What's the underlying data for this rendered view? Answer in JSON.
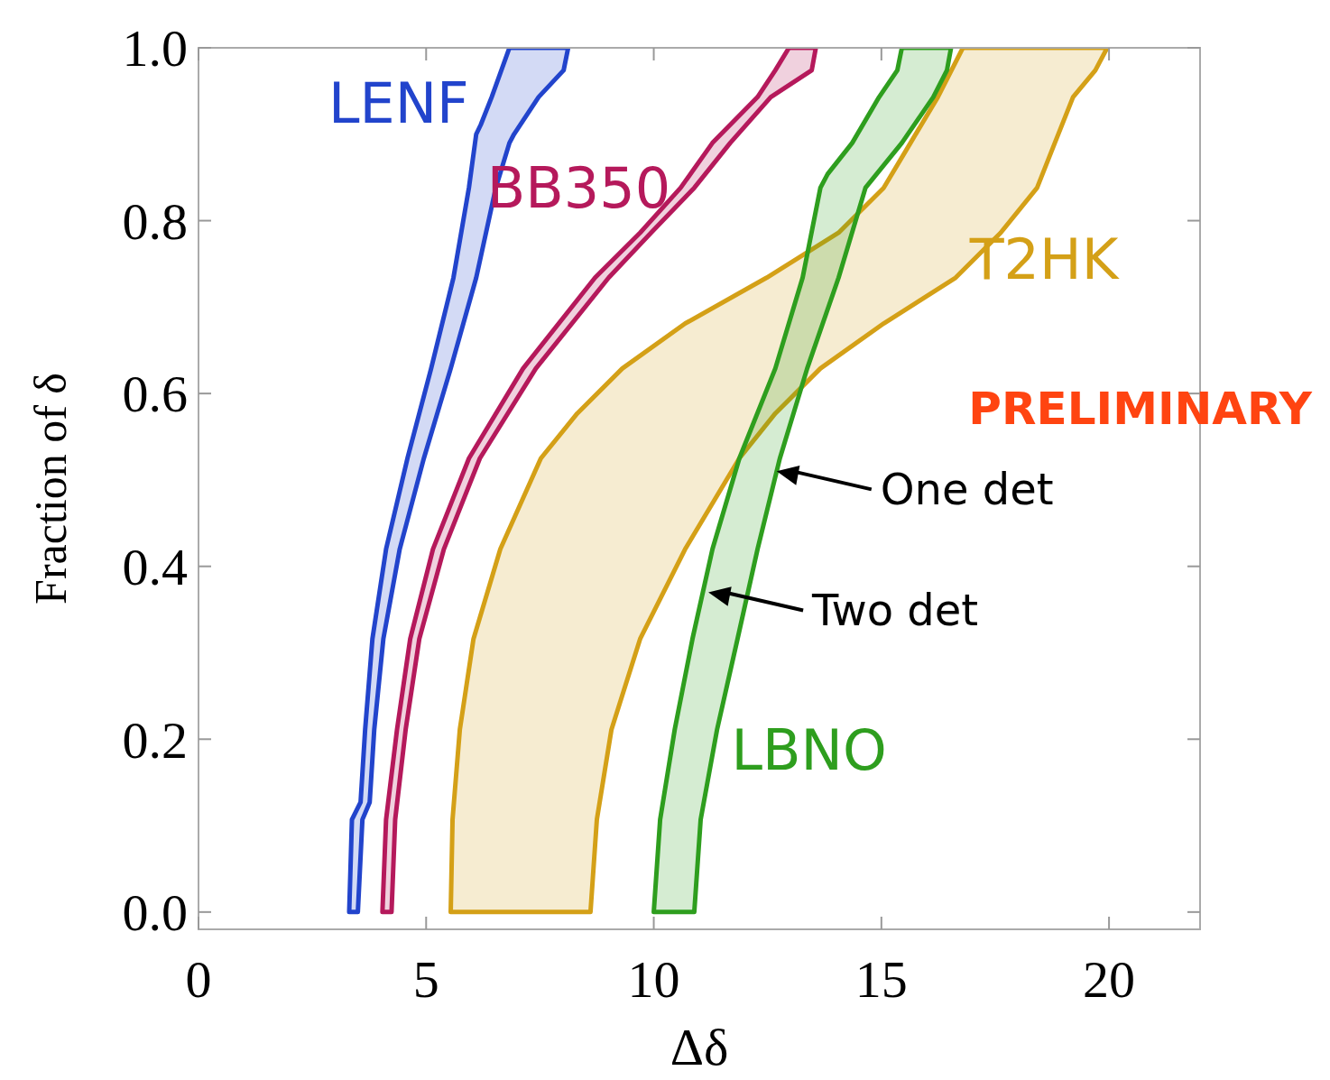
{
  "chart_data": {
    "type": "area",
    "xlabel": "Δδ",
    "ylabel": "Fraction of δ",
    "xlim": [
      0,
      22
    ],
    "ylim": [
      -0.02,
      1.0
    ],
    "xticks": [
      0,
      5,
      10,
      15,
      20
    ],
    "yticks": [
      {
        "value": 0,
        "label": "0.0"
      },
      {
        "value": 0.2,
        "label": "0.2"
      },
      {
        "value": 0.4,
        "label": "0.4"
      },
      {
        "value": 0.6,
        "label": "0.6"
      },
      {
        "value": 0.8,
        "label": "0.8"
      },
      {
        "value": 1.0,
        "label": "1.0"
      }
    ],
    "series": [
      {
        "name": "LENF",
        "color": "#2244cc",
        "x": [
          3.31,
          3.37,
          3.56,
          3.66,
          3.82,
          4.12,
          4.59,
          5.11,
          5.6,
          5.94,
          6.1,
          6.2,
          6.44,
          6.83,
          8.12,
          8.02,
          7.47,
          6.93,
          6.83,
          6.53,
          6.1,
          5.54,
          4.95,
          4.42,
          4.06,
          3.86,
          3.76,
          3.6,
          3.5
        ],
        "values": [
          0,
          0.107,
          0.127,
          0.211,
          0.316,
          0.42,
          0.525,
          0.629,
          0.734,
          0.838,
          0.9,
          0.911,
          0.943,
          1.0,
          1.0,
          0.974,
          0.943,
          0.9,
          0.89,
          0.838,
          0.734,
          0.629,
          0.525,
          0.42,
          0.316,
          0.211,
          0.127,
          0.107,
          0
        ]
      },
      {
        "name": "BB350",
        "color": "#b5195b",
        "x": [
          4.04,
          4.12,
          4.36,
          4.65,
          5.15,
          5.94,
          7.13,
          8.71,
          9.7,
          10.59,
          11.29,
          12.28,
          12.67,
          12.97,
          13.56,
          13.47,
          12.57,
          11.68,
          10.89,
          9.94,
          9.01,
          7.41,
          6.18,
          5.39,
          4.85,
          4.55,
          4.32,
          4.24
        ],
        "values": [
          0,
          0.107,
          0.211,
          0.316,
          0.42,
          0.525,
          0.629,
          0.734,
          0.786,
          0.838,
          0.89,
          0.943,
          0.974,
          1.0,
          1.0,
          0.974,
          0.943,
          0.89,
          0.838,
          0.786,
          0.734,
          0.629,
          0.525,
          0.42,
          0.316,
          0.211,
          0.107,
          0
        ]
      },
      {
        "name": "T2HK",
        "color": "#d4a017",
        "x": [
          5.54,
          5.58,
          5.74,
          6.04,
          6.63,
          7.52,
          8.32,
          9.31,
          10.69,
          12.48,
          14.06,
          15.05,
          15.64,
          16.24,
          16.79,
          19.96,
          19.7,
          19.21,
          18.81,
          18.42,
          17.62,
          16.63,
          15.05,
          13.66,
          12.67,
          11.88,
          10.69,
          9.7,
          9.07,
          8.75,
          8.61
        ],
        "values": [
          0,
          0.107,
          0.211,
          0.316,
          0.42,
          0.525,
          0.577,
          0.629,
          0.681,
          0.734,
          0.786,
          0.838,
          0.89,
          0.943,
          1.0,
          1.0,
          0.974,
          0.943,
          0.89,
          0.838,
          0.786,
          0.734,
          0.681,
          0.629,
          0.577,
          0.525,
          0.42,
          0.316,
          0.211,
          0.107,
          0
        ]
      },
      {
        "name": "LBNO",
        "color": "#2e9e1e",
        "x": [
          10.0,
          10.14,
          10.46,
          10.85,
          11.29,
          11.88,
          12.67,
          13.27,
          13.66,
          13.82,
          14.36,
          14.95,
          15.35,
          15.45,
          16.53,
          16.44,
          16.14,
          15.45,
          14.65,
          14.06,
          13.37,
          12.77,
          12.28,
          11.84,
          11.39,
          11.03,
          10.89
        ],
        "values": [
          0,
          0.107,
          0.211,
          0.316,
          0.42,
          0.525,
          0.629,
          0.734,
          0.838,
          0.854,
          0.89,
          0.943,
          0.974,
          1.0,
          1.0,
          0.974,
          0.943,
          0.89,
          0.838,
          0.734,
          0.629,
          0.525,
          0.42,
          0.316,
          0.211,
          0.107,
          0
        ]
      }
    ],
    "annotations": [
      "PRELIMINARY",
      {
        "text": "One det",
        "x": 12.7,
        "y": 0.51
      },
      {
        "text": "Two det",
        "x": 11.2,
        "y": 0.37
      }
    ]
  }
}
